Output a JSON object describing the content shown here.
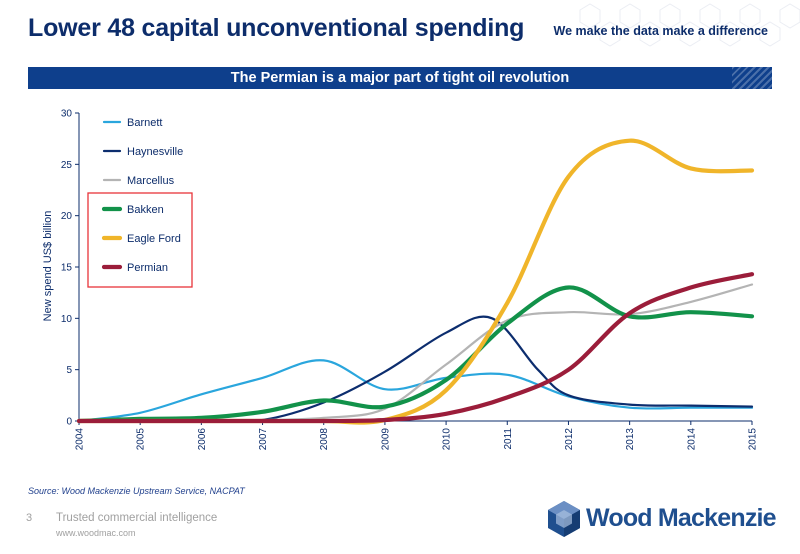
{
  "header": {
    "title": "Lower 48 capital unconventional spending",
    "tagline": "We make the data make a difference",
    "banner": "The Permian is a major part of tight oil revolution"
  },
  "footer": {
    "source": "Source: Wood Mackenzie Upstream Service, NACPAT",
    "page_number": "3",
    "tagline": "Trusted commercial intelligence",
    "url": "www.woodmac.com",
    "logo_text": "Wood Mackenzie"
  },
  "highlight_color": "#e8343a",
  "chart_data": {
    "type": "line",
    "title": "",
    "xlabel": "",
    "ylabel": "New spend US$ billion",
    "xlim": [
      2004,
      2015
    ],
    "ylim": [
      0,
      30
    ],
    "yticks": [
      0,
      5,
      10,
      15,
      20,
      25,
      30
    ],
    "xticks": [
      2004,
      2005,
      2006,
      2007,
      2008,
      2009,
      2010,
      2011,
      2012,
      2013,
      2014,
      2015
    ],
    "grid": false,
    "legend_position": "top-left",
    "highlighted_series": [
      "Bakken",
      "Eagle Ford",
      "Permian"
    ],
    "series": [
      {
        "name": "Barnett",
        "color": "#2aa6dd",
        "x": [
          2004,
          2005,
          2006,
          2007,
          2008,
          2009,
          2010,
          2011,
          2012,
          2013,
          2014,
          2015
        ],
        "values": [
          0.0,
          0.8,
          2.6,
          4.2,
          5.9,
          3.1,
          4.2,
          4.5,
          2.4,
          1.3,
          1.3,
          1.3
        ]
      },
      {
        "name": "Haynesville",
        "color": "#0c2d6e",
        "x": [
          2004,
          2005,
          2006,
          2007,
          2008,
          2009,
          2010,
          2010.75,
          2011.5,
          2012,
          2013,
          2014,
          2015
        ],
        "values": [
          0.0,
          0.0,
          0.0,
          0.1,
          1.8,
          4.8,
          8.6,
          10.0,
          5.0,
          2.5,
          1.6,
          1.5,
          1.4
        ]
      },
      {
        "name": "Marcellus",
        "color": "#b4b4b4",
        "x": [
          2004,
          2005,
          2006,
          2007,
          2008,
          2009,
          2010,
          2011,
          2012,
          2013,
          2014,
          2015
        ],
        "values": [
          0.0,
          0.0,
          0.0,
          0.1,
          0.3,
          1.2,
          5.5,
          9.8,
          10.6,
          10.4,
          11.6,
          13.3
        ]
      },
      {
        "name": "Bakken",
        "color": "#12924a",
        "x": [
          2004,
          2005,
          2006,
          2007,
          2008,
          2009,
          2010,
          2011,
          2012,
          2013,
          2014,
          2015
        ],
        "values": [
          0.0,
          0.2,
          0.3,
          0.9,
          2.0,
          1.4,
          4.0,
          9.5,
          13.0,
          10.2,
          10.6,
          10.2
        ]
      },
      {
        "name": "Eagle Ford",
        "color": "#f0b52a",
        "x": [
          2004,
          2005,
          2006,
          2007,
          2008,
          2009,
          2010,
          2011,
          2012,
          2013,
          2014,
          2015
        ],
        "values": [
          0.0,
          0.0,
          0.0,
          0.0,
          0.0,
          0.1,
          3.0,
          11.5,
          23.8,
          27.3,
          24.6,
          24.4
        ]
      },
      {
        "name": "Permian",
        "color": "#9b1d3a",
        "x": [
          2004,
          2005,
          2006,
          2007,
          2008,
          2009,
          2010,
          2011,
          2012,
          2013,
          2014,
          2015
        ],
        "values": [
          0.0,
          0.0,
          0.0,
          0.0,
          0.0,
          0.1,
          0.7,
          2.3,
          5.0,
          10.5,
          13.0,
          14.3
        ]
      }
    ]
  }
}
